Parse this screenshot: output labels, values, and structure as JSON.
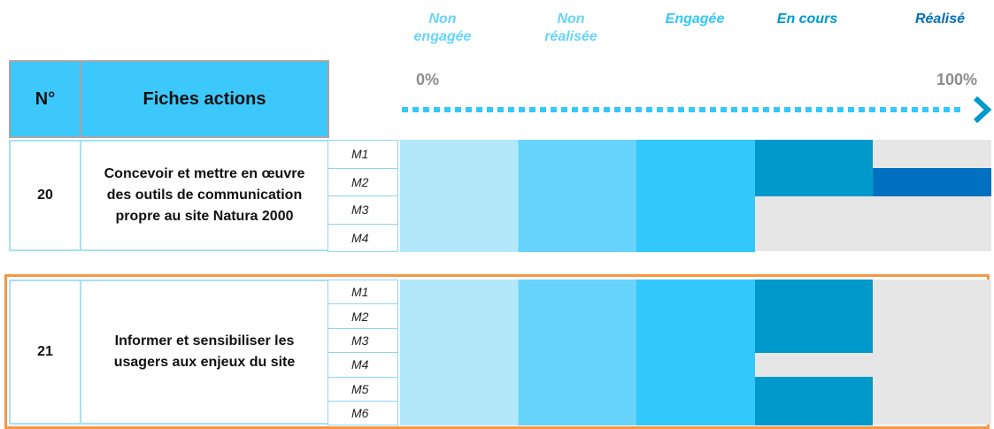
{
  "stages": [
    {
      "label": "Non engagée",
      "color": "#66d4fb",
      "fill": "#b3e8fb"
    },
    {
      "label": "Non réalisée",
      "color": "#66d4fb",
      "fill": "#66d4fb"
    },
    {
      "label": "Engagée",
      "color": "#33c8fb",
      "fill": "#33c8fb"
    },
    {
      "label": "En cours",
      "color": "#0099cc",
      "fill": "#0099cc"
    },
    {
      "label": "Réalisé",
      "color": "#0070c0",
      "fill": "#0070c0"
    }
  ],
  "scale": {
    "min": {
      "value": 0,
      "label": "0%"
    },
    "max": {
      "value": 100,
      "label": "100%"
    }
  },
  "table": {
    "headers": [
      "N°",
      "Fiches actions"
    ],
    "rows": [
      {
        "number": "20",
        "title": "Concevoir et mettre en œuvre des outils de communication propre au site Natura 2000",
        "measures": [
          {
            "label": "M1",
            "progress": 80
          },
          {
            "label": "M2",
            "progress": 100
          },
          {
            "label": "M3",
            "progress": 60
          },
          {
            "label": "M4",
            "progress": 60
          }
        ]
      },
      {
        "number": "21",
        "title": "Informer et sensibiliser les usagers aux enjeux du site",
        "measures": [
          {
            "label": "M1",
            "progress": 80
          },
          {
            "label": "M2",
            "progress": 80
          },
          {
            "label": "M3",
            "progress": 80
          },
          {
            "label": "M4",
            "progress": 60
          },
          {
            "label": "M5",
            "progress": 80
          },
          {
            "label": "M6",
            "progress": 80
          }
        ]
      }
    ]
  }
}
